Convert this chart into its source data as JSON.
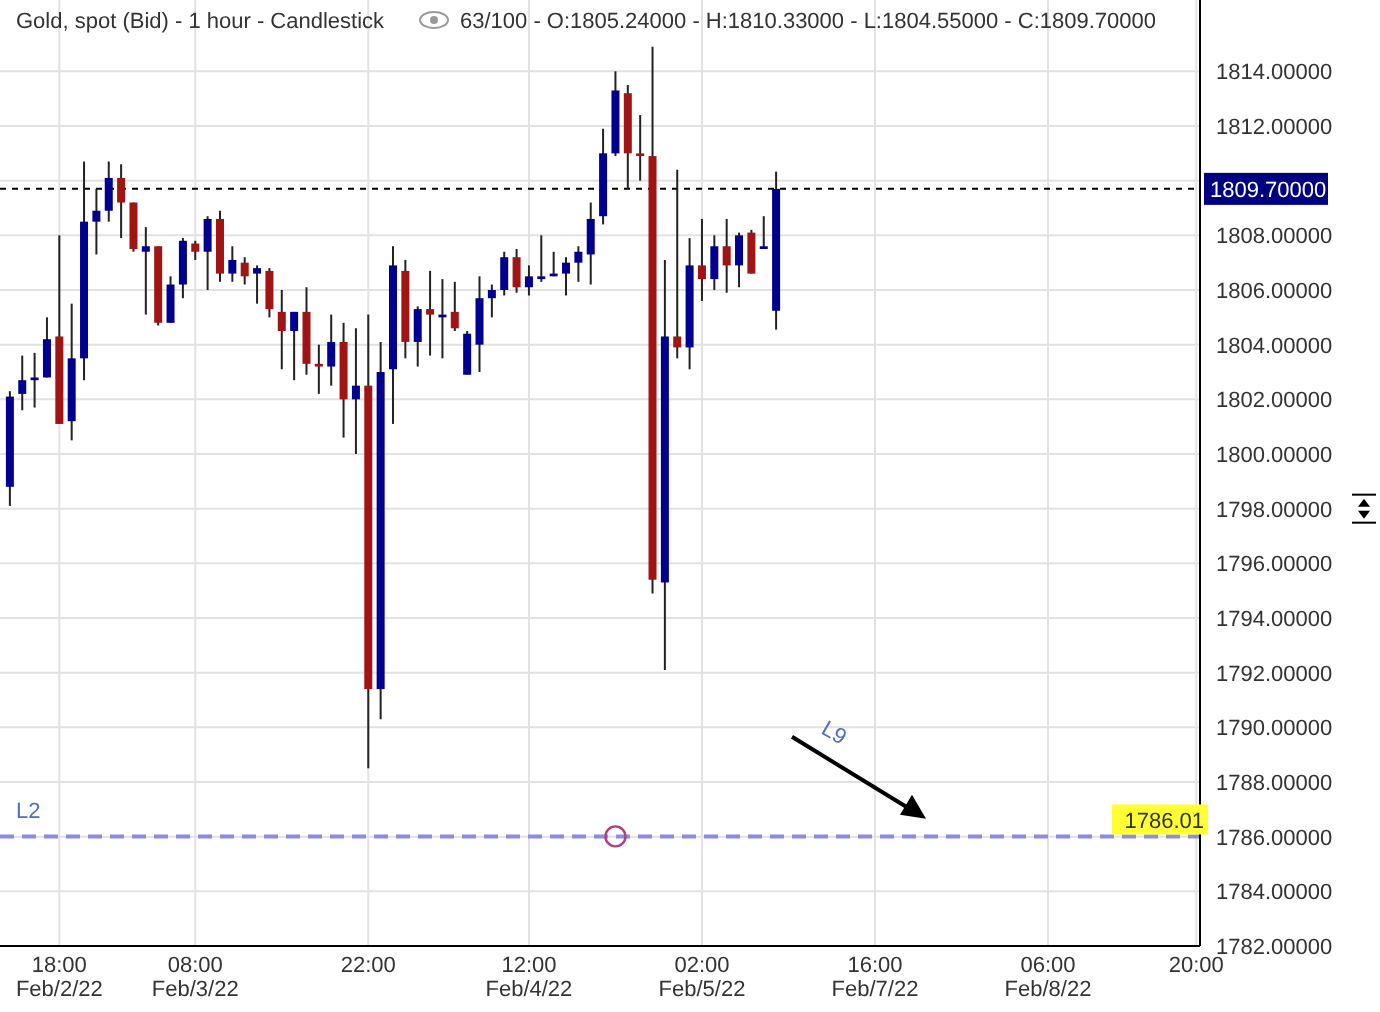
{
  "chart_data": {
    "type": "candlestick",
    "title": "Gold, spot (Bid) - 1 hour - Candlestick",
    "subtitle": "63/100 - O:1805.24000 - H:1810.33000 - L:1804.55000 - C:1809.70000",
    "categories": [
      null,
      null,
      null,
      null,
      "18:00\nFeb/2/22",
      null,
      null,
      null,
      null,
      null,
      null,
      null,
      null,
      null,
      null,
      "08:00\nFeb/3/22",
      null,
      null,
      null,
      null,
      null,
      null,
      null,
      null,
      null,
      null,
      null,
      null,
      null,
      "22:00",
      null,
      null,
      null,
      null,
      null,
      null,
      null,
      null,
      null,
      null,
      null,
      null,
      "12:00\nFeb/4/22",
      null,
      null,
      null,
      null,
      null,
      null,
      null,
      null,
      null,
      null,
      null,
      null,
      null,
      "02:00\nFeb/5/22",
      null,
      null,
      null,
      null,
      null,
      null,
      null,
      null,
      null,
      null,
      null,
      null,
      null,
      "16:00\nFeb/7/22",
      null,
      null,
      null,
      null,
      null,
      null,
      null,
      null,
      null,
      null,
      null,
      null,
      null,
      "06:00\nFeb/8/22",
      null,
      null,
      null,
      null,
      null,
      null,
      null,
      null,
      null,
      null,
      null,
      "20:00"
    ],
    "ohlc": [
      [
        1798.8,
        1802.3,
        1798.1,
        1802.1
      ],
      [
        1802.2,
        1803.6,
        1801.6,
        1802.7
      ],
      [
        1802.7,
        1803.7,
        1801.7,
        1802.8
      ],
      [
        1802.8,
        1805.0,
        1802.8,
        1804.2
      ],
      [
        1804.3,
        1808.0,
        1801.1,
        1801.1
      ],
      [
        1801.2,
        1805.5,
        1800.5,
        1803.5
      ],
      [
        1803.5,
        1810.7,
        1802.7,
        1808.5
      ],
      [
        1808.5,
        1809.7,
        1807.3,
        1808.9
      ],
      [
        1808.9,
        1810.7,
        1808.5,
        1810.1
      ],
      [
        1810.1,
        1810.6,
        1807.9,
        1809.2
      ],
      [
        1809.2,
        1809.2,
        1807.4,
        1807.5
      ],
      [
        1807.4,
        1808.3,
        1805.1,
        1807.6
      ],
      [
        1807.6,
        1807.6,
        1804.7,
        1804.8
      ],
      [
        1804.8,
        1806.5,
        1804.8,
        1806.2
      ],
      [
        1806.2,
        1807.9,
        1805.7,
        1807.8
      ],
      [
        1807.7,
        1807.8,
        1807.1,
        1807.4
      ],
      [
        1807.4,
        1808.7,
        1806.0,
        1808.6
      ],
      [
        1808.6,
        1808.9,
        1806.3,
        1806.6
      ],
      [
        1806.6,
        1807.6,
        1806.3,
        1807.1
      ],
      [
        1807.0,
        1807.2,
        1806.2,
        1806.5
      ],
      [
        1806.6,
        1806.9,
        1805.5,
        1806.8
      ],
      [
        1806.7,
        1806.8,
        1805.0,
        1805.3
      ],
      [
        1805.2,
        1806.0,
        1803.1,
        1804.5
      ],
      [
        1804.5,
        1805.2,
        1802.7,
        1805.2
      ],
      [
        1805.2,
        1806.1,
        1802.9,
        1803.3
      ],
      [
        1803.3,
        1804.0,
        1802.2,
        1803.2
      ],
      [
        1803.2,
        1805.1,
        1802.5,
        1804.1
      ],
      [
        1804.1,
        1804.8,
        1800.6,
        1802.0
      ],
      [
        1802.0,
        1804.6,
        1800.0,
        1802.5
      ],
      [
        1802.5,
        1805.1,
        1788.5,
        1791.4
      ],
      [
        1791.4,
        1804.1,
        1790.3,
        1803.0
      ],
      [
        1803.1,
        1807.6,
        1801.1,
        1806.9
      ],
      [
        1806.7,
        1807.1,
        1803.5,
        1804.1
      ],
      [
        1804.1,
        1805.4,
        1803.2,
        1805.3
      ],
      [
        1805.3,
        1806.7,
        1803.6,
        1805.1
      ],
      [
        1805.0,
        1806.4,
        1803.5,
        1805.1
      ],
      [
        1805.2,
        1806.3,
        1804.5,
        1804.6
      ],
      [
        1802.9,
        1804.5,
        1802.9,
        1804.4
      ],
      [
        1804.0,
        1806.5,
        1803.0,
        1805.7
      ],
      [
        1805.7,
        1806.2,
        1805.0,
        1806.0
      ],
      [
        1806.0,
        1807.4,
        1805.8,
        1807.2
      ],
      [
        1807.2,
        1807.5,
        1805.9,
        1806.1
      ],
      [
        1806.1,
        1806.9,
        1805.8,
        1806.5
      ],
      [
        1806.4,
        1808.0,
        1806.3,
        1806.5
      ],
      [
        1806.5,
        1807.4,
        1806.5,
        1806.6
      ],
      [
        1806.6,
        1807.2,
        1805.8,
        1807.0
      ],
      [
        1807.0,
        1807.6,
        1806.3,
        1807.4
      ],
      [
        1807.3,
        1809.2,
        1806.2,
        1808.6
      ],
      [
        1808.7,
        1811.9,
        1808.4,
        1811.0
      ],
      [
        1811.0,
        1814.0,
        1810.9,
        1813.3
      ],
      [
        1813.2,
        1813.5,
        1809.7,
        1811.0
      ],
      [
        1811.0,
        1812.4,
        1810.0,
        1810.9
      ],
      [
        1810.9,
        1814.9,
        1794.9,
        1795.4
      ],
      [
        1795.3,
        1807.1,
        1792.1,
        1804.3
      ],
      [
        1804.3,
        1810.4,
        1803.5,
        1803.9
      ],
      [
        1803.9,
        1807.9,
        1803.1,
        1806.9
      ],
      [
        1806.9,
        1808.6,
        1805.6,
        1806.4
      ],
      [
        1806.4,
        1808.0,
        1806.0,
        1807.6
      ],
      [
        1807.6,
        1808.6,
        1805.9,
        1806.9
      ],
      [
        1806.9,
        1808.1,
        1806.1,
        1808.0
      ],
      [
        1808.1,
        1808.2,
        1806.6,
        1806.6
      ],
      [
        1807.5,
        1808.7,
        1807.5,
        1807.6
      ],
      [
        1805.24,
        1810.33,
        1804.55,
        1809.7
      ],
      null,
      null,
      null,
      null,
      null,
      null,
      null,
      null,
      null,
      null,
      null,
      null,
      null,
      null,
      null,
      null,
      null,
      null,
      null,
      null,
      null,
      null,
      null,
      null,
      null,
      null,
      null,
      null,
      null,
      null,
      null,
      null,
      null,
      null
    ],
    "ylim": [
      1782,
      1815
    ],
    "yticks": [
      {
        "value": 1782,
        "label": "1782.00000"
      },
      {
        "value": 1784,
        "label": "1784.00000"
      },
      {
        "value": 1786,
        "label": "1786.00000"
      },
      {
        "value": 1788,
        "label": "1788.00000"
      },
      {
        "value": 1790,
        "label": "1790.00000"
      },
      {
        "value": 1792,
        "label": "1792.00000"
      },
      {
        "value": 1794,
        "label": "1794.00000"
      },
      {
        "value": 1796,
        "label": "1796.00000"
      },
      {
        "value": 1798,
        "label": "1798.00000"
      },
      {
        "value": 1800,
        "label": "1800.00000"
      },
      {
        "value": 1802,
        "label": "1802.00000"
      },
      {
        "value": 1804,
        "label": "1804.00000"
      },
      {
        "value": 1806,
        "label": "1806.00000"
      },
      {
        "value": 1808,
        "label": "1808.00000"
      },
      {
        "value": 1810,
        "label": null
      },
      {
        "value": 1812,
        "label": "1812.00000"
      },
      {
        "value": 1814,
        "label": "1814.00000"
      }
    ],
    "grid": true,
    "ref_lines": [
      {
        "axis": "y",
        "value": 1809.7,
        "label": "1809.70000",
        "color": "#000000",
        "line_style": "dotted"
      },
      {
        "axis": "y",
        "value": 1786.01,
        "label": "L2",
        "color": "#8c8ce0",
        "line_style": "dashed"
      }
    ],
    "annotations": [
      {
        "text": "1786.01",
        "y": 1786.01
      },
      "L9"
    ]
  }
}
